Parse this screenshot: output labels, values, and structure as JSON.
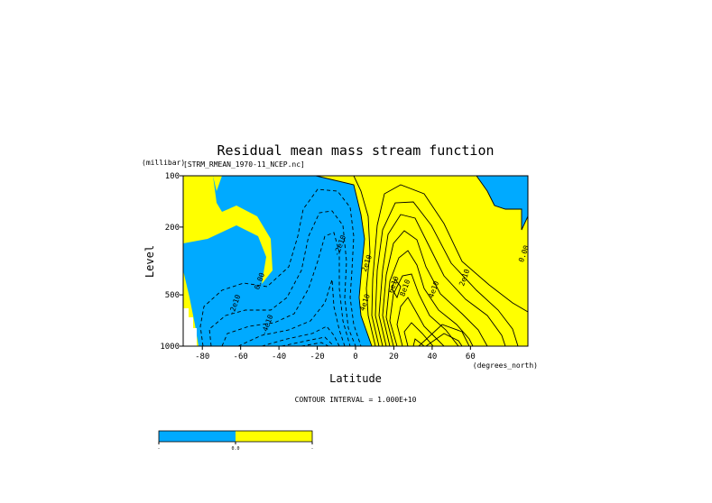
{
  "chart_data": {
    "type": "contour",
    "title": "Residual mean mass stream function",
    "source_label": "[STRM_RMEAN_1970-11_NCEP.nc]",
    "ylabel": "Level",
    "yunits": "(millibar)",
    "xlabel": "Latitude",
    "xunits": "(degrees_north)",
    "xlim": [
      -90,
      90
    ],
    "ylim": [
      1000,
      100
    ],
    "y_scale": "log",
    "x_ticks": [
      {
        "value": -80,
        "label": "-80"
      },
      {
        "value": -60,
        "label": "-60"
      },
      {
        "value": -40,
        "label": "-40"
      },
      {
        "value": -20,
        "label": "-20"
      },
      {
        "value": 0,
        "label": "0"
      },
      {
        "value": 20,
        "label": "20"
      },
      {
        "value": 40,
        "label": "40"
      },
      {
        "value": 60,
        "label": "60"
      }
    ],
    "y_ticks": [
      {
        "value": 100,
        "label": "100"
      },
      {
        "value": 200,
        "label": "200"
      },
      {
        "value": 500,
        "label": "500"
      },
      {
        "value": 1000,
        "label": "1000"
      }
    ],
    "contour_interval_text": "CONTOUR INTERVAL = 1.000E+10",
    "fill_colors": {
      "negative": "#00aaff",
      "positive": "#ffff00",
      "missing": "#ffffff"
    },
    "contour_labels": [
      {
        "text": "0.00",
        "lat": -49,
        "p": 420
      },
      {
        "text": "-2e10",
        "lat": -62,
        "p": 580
      },
      {
        "text": "-4e10",
        "lat": -45,
        "p": 760
      },
      {
        "text": "-2e10",
        "lat": -7,
        "p": 260
      },
      {
        "text": "2e10",
        "lat": 7,
        "p": 330
      },
      {
        "text": "4e10",
        "lat": 6,
        "p": 560
      },
      {
        "text": "6e10",
        "lat": 21,
        "p": 440
      },
      {
        "text": "8e10",
        "lat": 27,
        "p": 460
      },
      {
        "text": "4e10",
        "lat": 42,
        "p": 470
      },
      {
        "text": "2e10",
        "lat": 58,
        "p": 400
      },
      {
        "text": "0.00",
        "lat": 89,
        "p": 290
      }
    ],
    "colorbar": {
      "segments": [
        {
          "color": "#00aaff",
          "label": "-"
        },
        {
          "color": "#ffff00",
          "label": "0.0"
        }
      ],
      "end_label": "-"
    }
  }
}
